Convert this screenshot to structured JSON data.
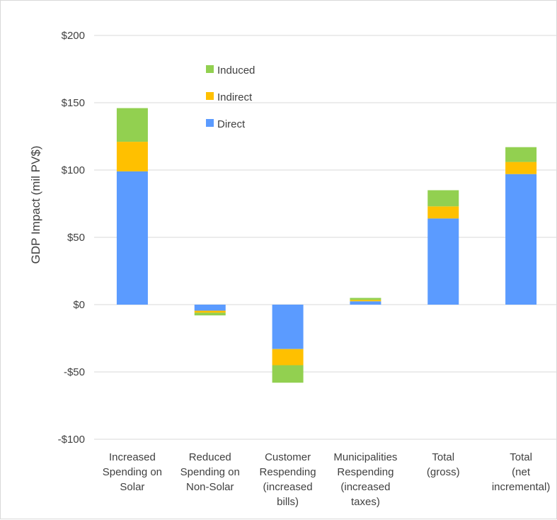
{
  "chart_data": {
    "type": "bar",
    "stacked": true,
    "ylabel": "GDP Impact (mil PV$)",
    "xlabel": "",
    "ylim": [
      -100,
      200
    ],
    "yticks": [
      {
        "value": 200,
        "label": "$200"
      },
      {
        "value": 150,
        "label": "$150"
      },
      {
        "value": 100,
        "label": "$100"
      },
      {
        "value": 50,
        "label": "$50"
      },
      {
        "value": 0,
        "label": "$0"
      },
      {
        "value": -50,
        "label": "-$50"
      },
      {
        "value": -100,
        "label": "-$100"
      }
    ],
    "grid": true,
    "legend_position": "top-left",
    "categories": [
      [
        "Increased",
        "Spending on",
        "Solar"
      ],
      [
        "Reduced",
        "Spending on",
        "Non-Solar"
      ],
      [
        "Customer",
        "Respending",
        "(increased",
        "bills)"
      ],
      [
        "Municipalities",
        "Respending",
        "(increased",
        "taxes)"
      ],
      [
        "Total",
        "(gross)"
      ],
      [
        "Total",
        "(net",
        "incremental)"
      ]
    ],
    "series": [
      {
        "name": "Direct",
        "color": "#5b9bff",
        "values": [
          99,
          -4.5,
          -33,
          2.5,
          64,
          97
        ]
      },
      {
        "name": "Indirect",
        "color": "#ffc000",
        "values": [
          22,
          -1.5,
          -12,
          1,
          9,
          9
        ]
      },
      {
        "name": "Induced",
        "color": "#92d050",
        "values": [
          25,
          -2,
          -13,
          1.5,
          12,
          11
        ]
      }
    ],
    "legend_order": [
      "Induced",
      "Indirect",
      "Direct"
    ]
  }
}
